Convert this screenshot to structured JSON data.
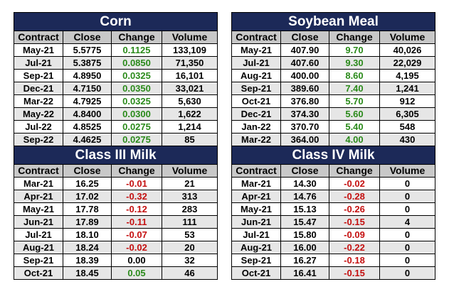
{
  "columns": [
    "Contract",
    "Close",
    "Change",
    "Volume"
  ],
  "colors": {
    "title_bg": "#1c2958",
    "header_bg": "#c8c8c8",
    "positive": "#2a8a1a",
    "negative": "#c41010"
  },
  "panels": [
    {
      "title": "Corn",
      "rows": [
        {
          "contract": "May-21",
          "close": "5.5775",
          "change": "0.1125",
          "volume": "133,109"
        },
        {
          "contract": "Jul-21",
          "close": "5.3875",
          "change": "0.0850",
          "volume": "71,350"
        },
        {
          "contract": "Sep-21",
          "close": "4.8950",
          "change": "0.0325",
          "volume": "16,101"
        },
        {
          "contract": "Dec-21",
          "close": "4.7150",
          "change": "0.0350",
          "volume": "33,021"
        },
        {
          "contract": "Mar-22",
          "close": "4.7925",
          "change": "0.0325",
          "volume": "5,630"
        },
        {
          "contract": "May-22",
          "close": "4.8400",
          "change": "0.0300",
          "volume": "1,622"
        },
        {
          "contract": "Jul-22",
          "close": "4.8525",
          "change": "0.0275",
          "volume": "1,214"
        },
        {
          "contract": "Sep-22",
          "close": "4.4625",
          "change": "0.0275",
          "volume": "85"
        }
      ]
    },
    {
      "title": "Soybean Meal",
      "rows": [
        {
          "contract": "May-21",
          "close": "407.90",
          "change": "9.70",
          "volume": "40,026"
        },
        {
          "contract": "Jul-21",
          "close": "407.60",
          "change": "9.30",
          "volume": "22,029"
        },
        {
          "contract": "Aug-21",
          "close": "400.00",
          "change": "8.60",
          "volume": "4,195"
        },
        {
          "contract": "Sep-21",
          "close": "389.60",
          "change": "7.40",
          "volume": "1,241"
        },
        {
          "contract": "Oct-21",
          "close": "376.80",
          "change": "5.70",
          "volume": "912"
        },
        {
          "contract": "Dec-21",
          "close": "374.30",
          "change": "5.60",
          "volume": "6,305"
        },
        {
          "contract": "Jan-22",
          "close": "370.70",
          "change": "5.40",
          "volume": "548"
        },
        {
          "contract": "Mar-22",
          "close": "364.00",
          "change": "4.00",
          "volume": "430"
        }
      ]
    },
    {
      "title": "Class III Milk",
      "rows": [
        {
          "contract": "Mar-21",
          "close": "16.25",
          "change": "-0.01",
          "volume": "21"
        },
        {
          "contract": "Apr-21",
          "close": "17.02",
          "change": "-0.32",
          "volume": "313"
        },
        {
          "contract": "May-21",
          "close": "17.78",
          "change": "-0.12",
          "volume": "283"
        },
        {
          "contract": "Jun-21",
          "close": "17.89",
          "change": "-0.11",
          "volume": "111"
        },
        {
          "contract": "Jul-21",
          "close": "18.10",
          "change": "-0.07",
          "volume": "53"
        },
        {
          "contract": "Aug-21",
          "close": "18.24",
          "change": "-0.02",
          "volume": "20"
        },
        {
          "contract": "Sep-21",
          "close": "18.39",
          "change": "0.00",
          "volume": "32"
        },
        {
          "contract": "Oct-21",
          "close": "18.45",
          "change": "0.05",
          "volume": "46"
        }
      ]
    },
    {
      "title": "Class IV Milk",
      "rows": [
        {
          "contract": "Mar-21",
          "close": "14.30",
          "change": "-0.02",
          "volume": "0"
        },
        {
          "contract": "Apr-21",
          "close": "14.76",
          "change": "-0.28",
          "volume": "0"
        },
        {
          "contract": "May-21",
          "close": "15.13",
          "change": "-0.26",
          "volume": "0"
        },
        {
          "contract": "Jun-21",
          "close": "15.47",
          "change": "-0.15",
          "volume": "4"
        },
        {
          "contract": "Jul-21",
          "close": "15.80",
          "change": "-0.09",
          "volume": "0"
        },
        {
          "contract": "Aug-21",
          "close": "16.00",
          "change": "-0.22",
          "volume": "0"
        },
        {
          "contract": "Sep-21",
          "close": "16.27",
          "change": "-0.18",
          "volume": "0"
        },
        {
          "contract": "Oct-21",
          "close": "16.41",
          "change": "-0.15",
          "volume": "0"
        }
      ]
    }
  ]
}
